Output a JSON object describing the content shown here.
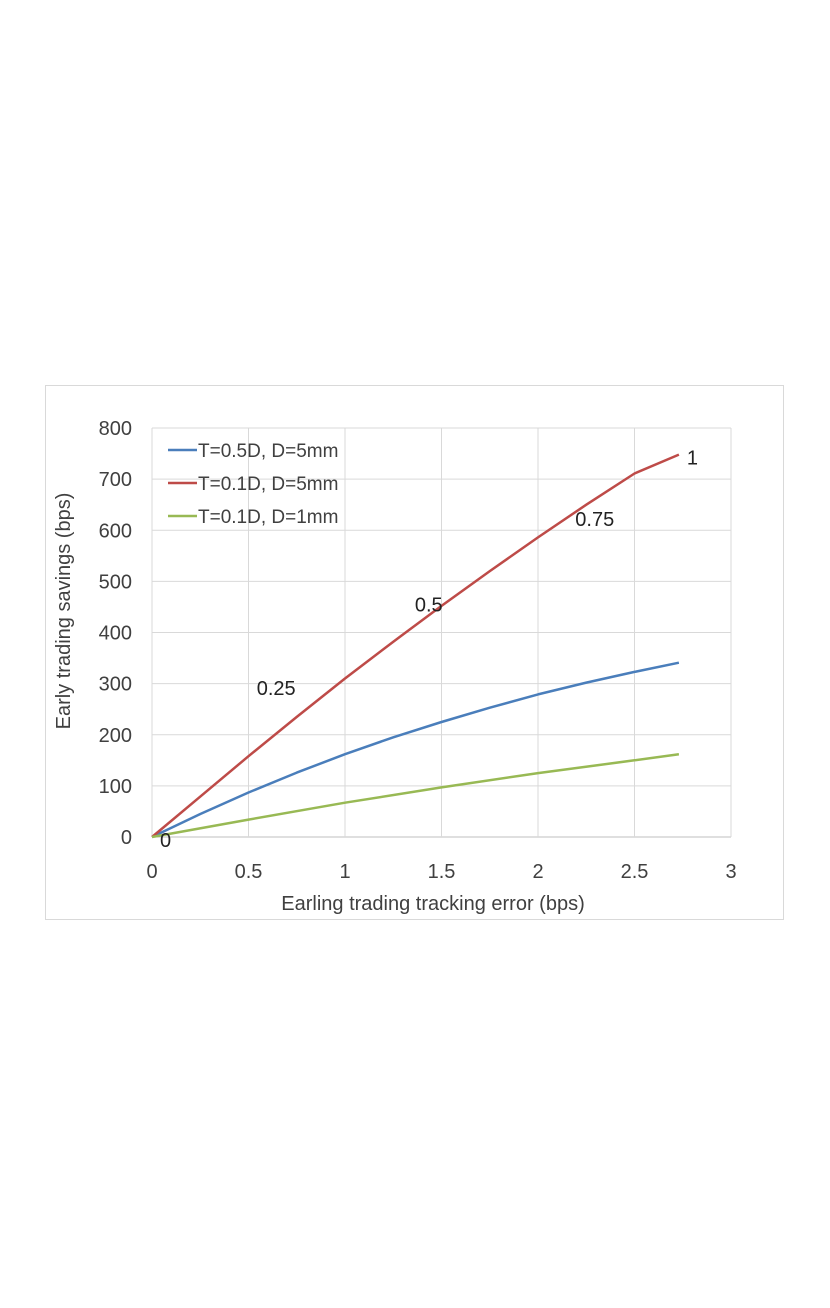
{
  "chart_data": {
    "type": "line",
    "title": "",
    "xlabel": "Earling trading tracking error (bps)",
    "ylabel": "Early trading savings (bps)",
    "xlim": [
      0,
      3
    ],
    "ylim": [
      0,
      800
    ],
    "xticks": [
      "0",
      "0.5",
      "1",
      "1.5",
      "2",
      "2.5",
      "3"
    ],
    "yticks": [
      "0",
      "100",
      "200",
      "300",
      "400",
      "500",
      "600",
      "700",
      "800"
    ],
    "grid": true,
    "legend_position": "top-left",
    "series": [
      {
        "name": "T=0.5D, D=5mm",
        "color": "#4a7ebb",
        "x": [
          0,
          0.25,
          0.5,
          0.75,
          1.0,
          1.25,
          1.5,
          1.75,
          2.0,
          2.25,
          2.5,
          2.73
        ],
        "y": [
          0,
          45,
          87,
          126,
          162,
          195,
          225,
          253,
          279,
          302,
          323,
          341
        ]
      },
      {
        "name": "T=0.1D, D=5mm",
        "color": "#be4b48",
        "x": [
          0,
          0.25,
          0.5,
          0.75,
          1.0,
          1.25,
          1.5,
          1.75,
          2.0,
          2.25,
          2.5,
          2.73
        ],
        "y": [
          0,
          79,
          158,
          235,
          310,
          382,
          452,
          520,
          586,
          650,
          711,
          748
        ]
      },
      {
        "name": "T=0.1D, D=1mm",
        "color": "#98b954",
        "x": [
          0,
          0.5,
          1.0,
          1.5,
          2.0,
          2.5,
          2.73
        ],
        "y": [
          0,
          34,
          67,
          97,
          125,
          150,
          162
        ]
      }
    ],
    "annotations": [
      {
        "text": "0",
        "x": 0.0,
        "y": 0
      },
      {
        "text": "0.25",
        "x": 0.75,
        "y": 235
      },
      {
        "text": "0.5",
        "x": 1.45,
        "y": 445
      },
      {
        "text": "0.75",
        "x": 2.1,
        "y": 610
      },
      {
        "text": "1",
        "x": 2.73,
        "y": 748
      }
    ]
  }
}
